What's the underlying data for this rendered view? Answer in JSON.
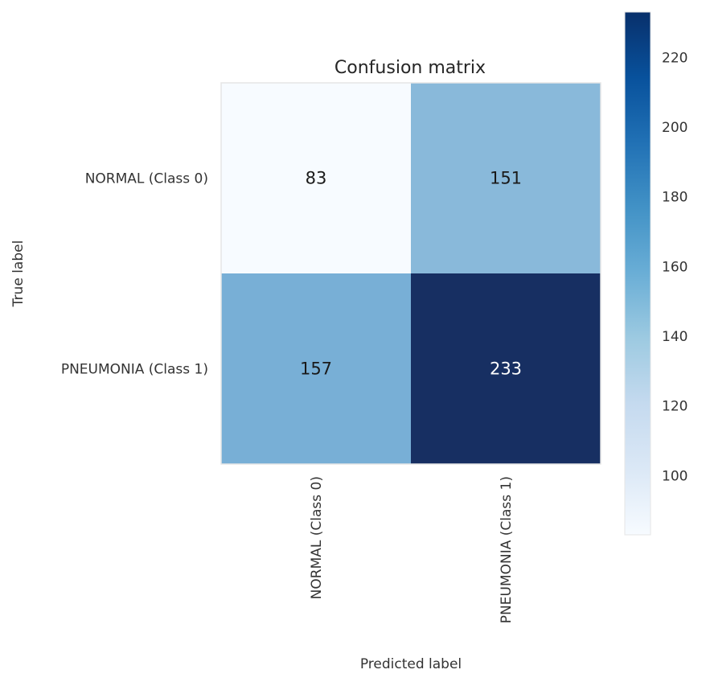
{
  "chart_data": {
    "type": "heatmap",
    "title": "Confusion matrix",
    "xlabel": "Predicted label",
    "ylabel": "True label",
    "row_labels": [
      "NORMAL (Class 0)",
      "PNEUMONIA (Class 1)"
    ],
    "col_labels": [
      "NORMAL (Class 0)",
      "PNEUMONIA (Class 1)"
    ],
    "values": [
      [
        83,
        151
      ],
      [
        157,
        233
      ]
    ],
    "colormap": "Blues",
    "colorbar": {
      "min": 83,
      "max": 233,
      "ticks": [
        100,
        120,
        140,
        160,
        180,
        200,
        220
      ]
    },
    "grid": false
  },
  "colors": {
    "cell_colors": [
      [
        "#f7fbff",
        "#89b9da"
      ],
      [
        "#78afd6",
        "#172f62"
      ]
    ],
    "text_on_light": "#1a1a1a",
    "text_on_dark": "#ffffff",
    "colorbar_gradient": [
      "#f7fbff",
      "#dbe8f6",
      "#c5daef",
      "#9dcae1",
      "#6aaed6",
      "#4292c6",
      "#2171b5",
      "#08519c",
      "#08306b"
    ]
  }
}
